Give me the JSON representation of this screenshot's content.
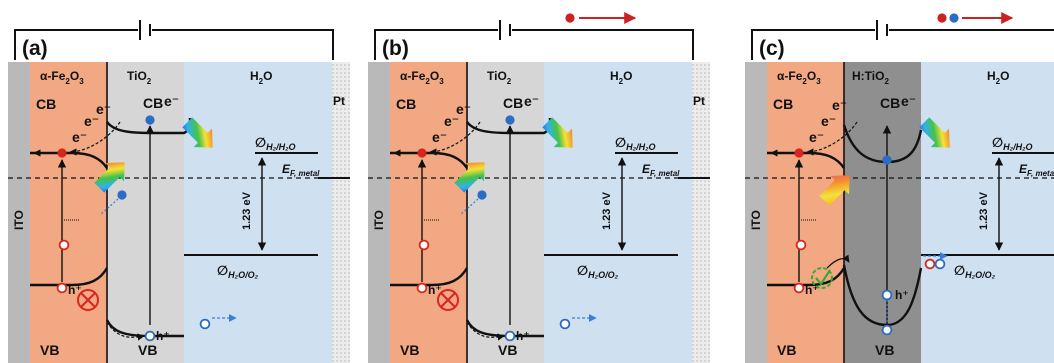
{
  "colors": {
    "ito": "#b9b9b9",
    "hematite": "#f1a883",
    "tio2": "#d6d6d6",
    "h_tio2": "#8f8f8f",
    "water": "#cfe0f1",
    "pt": "#e9e9e9",
    "electron": "#2b6cc4",
    "hole_ring_red": "#d7261e",
    "arrow_red": "#cc2222",
    "dotted_blue": "#3a7fd5",
    "check_green": "#3aaa35"
  },
  "icons": {
    "light": "rainbow-light-arrow-icon",
    "blocked": "blocked-cross-icon",
    "allowed": "green-check-icon",
    "electron": "electron-dot-icon",
    "hole": "hole-circle-icon"
  },
  "panels": [
    {
      "label": "(a)",
      "layers": {
        "ito": "ITO",
        "left": "α-Fe₂O₃",
        "middle": "TiO₂",
        "water": "H₂O",
        "metal": "Pt"
      },
      "band_labels": {
        "cb_left": "CB",
        "cb_mid": "CB",
        "vb_left": "VB",
        "vb_mid": "VB"
      },
      "carriers": {
        "e": "e⁻",
        "h": "h⁺"
      },
      "levels": {
        "top": "∅",
        "top_sub": "H₂/H₂O",
        "ef": "E",
        "ef_sub": "F, metal",
        "bottom": "∅",
        "bottom_sub": "H₂O/O₂"
      },
      "gap": "1.23 eV",
      "circuit_carriers": [],
      "blocked": true
    },
    {
      "label": "(b)",
      "layers": {
        "ito": "ITO",
        "left": "α-Fe₂O₃",
        "middle": "TiO₂",
        "water": "H₂O",
        "metal": "Pt"
      },
      "band_labels": {
        "cb_left": "CB",
        "cb_mid": "CB",
        "vb_left": "VB",
        "vb_mid": "VB"
      },
      "carriers": {
        "e": "e⁻",
        "h": "h⁺"
      },
      "levels": {
        "top": "∅",
        "top_sub": "H₂/H₂O",
        "ef": "E",
        "ef_sub": "F, metal",
        "bottom": "∅",
        "bottom_sub": "H₂O/O₂"
      },
      "gap": "1.23 eV",
      "circuit_carriers": [
        "electron-red"
      ],
      "blocked": true
    },
    {
      "label": "(c)",
      "layers": {
        "ito": "ITO",
        "left": "α-Fe₂O₃",
        "middle": "H:TiO₂",
        "water": "H₂O",
        "metal": ""
      },
      "band_labels": {
        "cb_left": "CB",
        "cb_mid": "CB",
        "vb_left": "VB",
        "vb_mid": "VB"
      },
      "carriers": {
        "e": "e⁻",
        "h": "h⁺"
      },
      "levels": {
        "top": "∅",
        "top_sub": "H₂/H₂O",
        "ef": "E",
        "ef_sub": "F, metal",
        "bottom": "∅",
        "bottom_sub": "H₂O/O₂"
      },
      "gap": "1.23 eV",
      "circuit_carriers": [
        "electron-red",
        "hole-blue"
      ],
      "blocked": false
    }
  ]
}
